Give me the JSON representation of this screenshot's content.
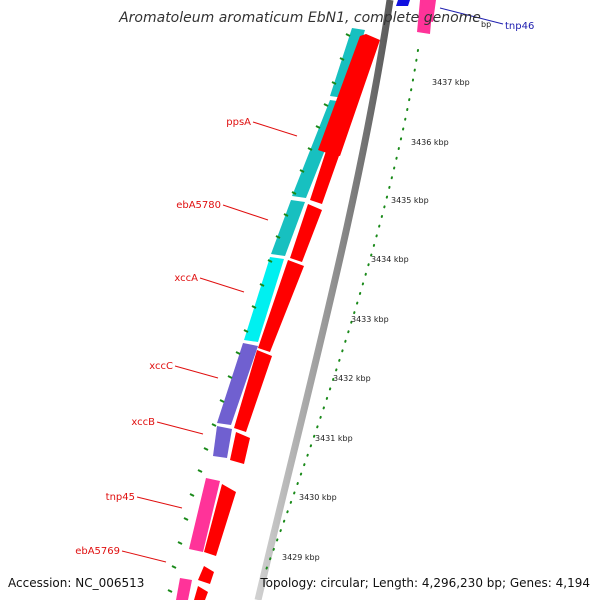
{
  "title": "Aromatoleum aromaticum EbN1, complete genome",
  "accession_text": "Accession: NC_006513",
  "summary_text": "Topology: circular; Length: 4,296,230 bp; Genes: 4,194",
  "ticks": [
    "3437 kbp",
    "3436 kbp",
    "3435 kbp",
    "3434 kbp",
    "3433 kbp",
    "3432 kbp",
    "3431 kbp",
    "3430 kbp",
    "3429 kbp"
  ],
  "partial_tick_text": "bp",
  "top_edge_label": "tnp46",
  "gene_labels": [
    "ppsA",
    "ebA5780",
    "xccA",
    "xccC",
    "xccB",
    "tnp45",
    "ebA5769"
  ],
  "colors": {
    "cds": "#ff0000",
    "cog_teal": "#17c0c0",
    "cog_cyan": "#00f0f0",
    "cog_purple": "#7060d0",
    "cog_pink": "#ff3399",
    "backbone": "#888888",
    "tick": "#1a8a1a",
    "label": "#e01010",
    "edge_label": "#2020b0"
  }
}
